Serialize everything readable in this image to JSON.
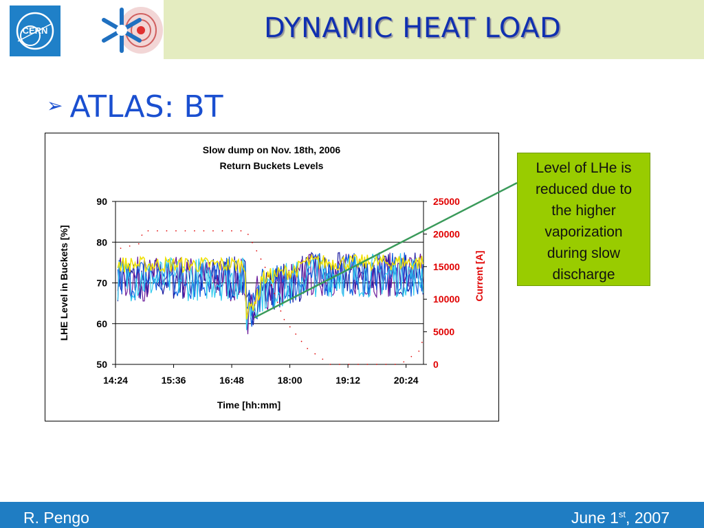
{
  "header": {
    "title": "DYNAMIC HEAT LOAD",
    "cern_logo_text": "CERN",
    "colors": {
      "band": "#e4ecc0",
      "title": "#1030b0",
      "cern_blue": "#1f80c8"
    }
  },
  "bullet": {
    "icon": "arrow-bullet-icon",
    "text": "ATLAS: BT"
  },
  "callout": {
    "lines": [
      "Level of LHe is",
      "reduced due to",
      "the higher",
      "vaporization",
      "during slow",
      "discharge"
    ],
    "color": "#99cc00"
  },
  "footer": {
    "author": "R. Pengo",
    "date_prefix": "June 1",
    "date_sup": "st",
    "date_suffix": ", 2007",
    "color": "#1f7dc3"
  },
  "chart_data": {
    "type": "line",
    "title": "Slow dump on Nov. 18th, 2006",
    "subtitle": "Return Buckets Levels",
    "xlabel": "Time [hh:mm]",
    "ylabel_left": "LHE Level in Buckets [%]",
    "ylabel_right": "Current [A]",
    "x_ticks": [
      "14:24",
      "15:36",
      "16:48",
      "18:00",
      "19:12",
      "20:24"
    ],
    "x_range_hours": [
      14.4,
      21.0
    ],
    "ylim_left": [
      50,
      90
    ],
    "yticks_left": [
      50,
      60,
      70,
      80,
      90
    ],
    "ylim_right": [
      0,
      25000
    ],
    "yticks_right": [
      0,
      5000,
      10000,
      15000,
      20000,
      25000
    ],
    "grid": "horizontal",
    "dump_time_hours": 17.2,
    "level_series_colors": [
      "#1a1aa0",
      "#6a1a9a",
      "#1060e0",
      "#33ccee",
      "#f0e000"
    ],
    "level_series_count": 5,
    "level_before_dump": 71,
    "level_after_dump_min": 56,
    "level_recovery": 72,
    "current": {
      "color": "#e00000",
      "points": [
        {
          "t": 14.5,
          "a": 17800
        },
        {
          "t": 14.9,
          "a": 18500
        },
        {
          "t": 15.0,
          "a": 20500
        },
        {
          "t": 17.2,
          "a": 20500
        },
        {
          "t": 17.6,
          "a": 15000
        },
        {
          "t": 18.0,
          "a": 7000
        },
        {
          "t": 18.5,
          "a": 2500
        },
        {
          "t": 19.0,
          "a": 0
        },
        {
          "t": 20.5,
          "a": 0
        },
        {
          "t": 20.9,
          "a": 2000
        },
        {
          "t": 21.0,
          "a": 4000
        }
      ]
    },
    "annotation_line_color": "#3a9a5a"
  }
}
